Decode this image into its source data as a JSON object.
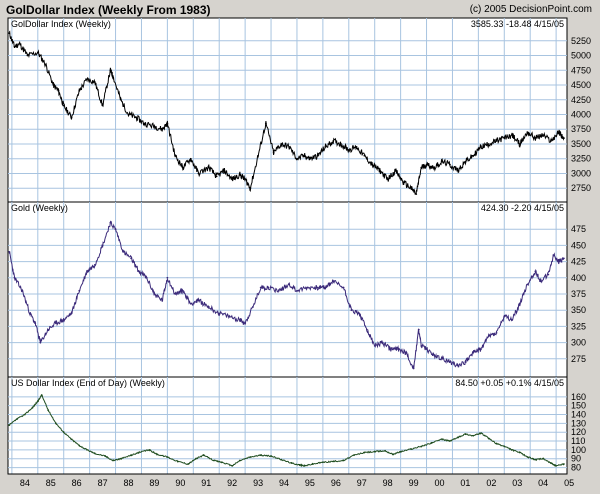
{
  "header": {
    "title": "GolDollar Index (Weekly From 1983)",
    "copyright": "(c) 2005 DecisionPoint.com"
  },
  "colors": {
    "background": "#d6d3ce",
    "plot_bg": "#ffffff",
    "grid": "#a8c4e0",
    "goldollar_line": "#000000",
    "gold_line": "#3b2a7a",
    "usd_line": "#1f4d1f"
  },
  "chart_data": [
    {
      "type": "line",
      "title": "GolDollar Index (Weekly)",
      "stats": {
        "last": "3585.33",
        "change": "-18.48",
        "date": "4/15/05"
      },
      "ylim": [
        2550,
        5450
      ],
      "yticks": [
        2750,
        3000,
        3250,
        3500,
        3750,
        4000,
        4250,
        4500,
        4750,
        5000,
        5250
      ],
      "xlim": [
        1983.85,
        2005.42
      ],
      "x": [
        1983.9,
        1984.1,
        1984.3,
        1984.6,
        1985.0,
        1985.3,
        1985.6,
        1985.8,
        1986.0,
        1986.3,
        1986.6,
        1986.9,
        1987.2,
        1987.5,
        1987.8,
        1987.9,
        1988.2,
        1988.5,
        1988.8,
        1989.1,
        1989.5,
        1989.8,
        1990.0,
        1990.3,
        1990.6,
        1990.9,
        1991.2,
        1991.6,
        1991.9,
        1992.2,
        1992.5,
        1992.8,
        1993.0,
        1993.2,
        1993.5,
        1993.8,
        1994.1,
        1994.4,
        1994.7,
        1995.0,
        1995.3,
        1995.5,
        1995.8,
        1996.1,
        1996.4,
        1996.7,
        1997.0,
        1997.3,
        1997.6,
        1997.9,
        1998.2,
        1998.5,
        1998.8,
        1999.1,
        1999.4,
        1999.6,
        1999.8,
        2000.0,
        2000.3,
        2000.6,
        2000.9,
        2001.2,
        2001.5,
        2001.8,
        2002.1,
        2002.4,
        2002.7,
        2003.0,
        2003.3,
        2003.6,
        2003.9,
        2004.2,
        2004.5,
        2004.8,
        2005.1,
        2005.3
      ],
      "values": [
        5380,
        5150,
        5200,
        5000,
        5050,
        4850,
        4500,
        4400,
        4150,
        3950,
        4400,
        4600,
        4550,
        4150,
        4750,
        4650,
        4250,
        4000,
        3950,
        3850,
        3800,
        3750,
        3850,
        3300,
        3100,
        3250,
        3000,
        3100,
        2950,
        3050,
        2900,
        2980,
        2900,
        2750,
        3300,
        3850,
        3350,
        3500,
        3450,
        3250,
        3300,
        3250,
        3300,
        3450,
        3550,
        3500,
        3400,
        3450,
        3300,
        3150,
        3050,
        2900,
        3050,
        2850,
        2750,
        2650,
        3100,
        3150,
        3100,
        3200,
        3150,
        3050,
        3200,
        3300,
        3450,
        3500,
        3550,
        3600,
        3650,
        3500,
        3700,
        3600,
        3650,
        3550,
        3700,
        3600
      ]
    },
    {
      "type": "line",
      "title": "Gold (Weekly)",
      "stats": {
        "last": "424.30",
        "change": "-2.20",
        "date": "4/15/05"
      },
      "ylim": [
        250,
        500
      ],
      "yticks": [
        275,
        300,
        325,
        350,
        375,
        400,
        425,
        450,
        475
      ],
      "xlim": [
        1983.85,
        2005.42
      ],
      "x": [
        1983.9,
        1984.1,
        1984.4,
        1984.7,
        1984.9,
        1985.1,
        1985.4,
        1985.7,
        1986.0,
        1986.3,
        1986.6,
        1986.9,
        1987.2,
        1987.5,
        1987.8,
        1988.0,
        1988.3,
        1988.6,
        1988.9,
        1989.2,
        1989.5,
        1989.8,
        1990.0,
        1990.3,
        1990.6,
        1990.9,
        1991.2,
        1991.6,
        1992.0,
        1992.4,
        1992.8,
        1993.0,
        1993.3,
        1993.6,
        1993.9,
        1994.3,
        1994.7,
        1995.0,
        1995.4,
        1995.8,
        1996.1,
        1996.4,
        1996.8,
        1997.1,
        1997.4,
        1997.7,
        1998.0,
        1998.3,
        1998.6,
        1998.9,
        1999.2,
        1999.5,
        1999.7,
        1999.8,
        2000.0,
        2000.3,
        2000.6,
        2000.9,
        2001.2,
        2001.5,
        2001.8,
        2002.1,
        2002.4,
        2002.7,
        2003.0,
        2003.3,
        2003.6,
        2003.9,
        2004.2,
        2004.4,
        2004.7,
        2004.9,
        2005.1,
        2005.3
      ],
      "values": [
        440,
        400,
        380,
        345,
        330,
        300,
        320,
        330,
        335,
        345,
        380,
        410,
        420,
        450,
        485,
        475,
        440,
        430,
        410,
        400,
        375,
        365,
        400,
        375,
        380,
        360,
        365,
        355,
        345,
        340,
        335,
        330,
        355,
        385,
        385,
        380,
        390,
        380,
        385,
        385,
        385,
        395,
        385,
        350,
        345,
        320,
        295,
        300,
        290,
        290,
        285,
        260,
        320,
        295,
        290,
        280,
        275,
        270,
        265,
        270,
        285,
        290,
        310,
        315,
        340,
        335,
        360,
        390,
        410,
        395,
        405,
        435,
        425,
        430
      ]
    },
    {
      "type": "line",
      "title": "US Dollar Index (End of Day) (Weekly)",
      "stats": {
        "last": "84.50",
        "change": "+0.05",
        "pct": "+0.1%",
        "date": "4/15/05"
      },
      "ylim": [
        75,
        170
      ],
      "yticks": [
        80,
        90,
        100,
        110,
        120,
        130,
        140,
        150,
        160
      ],
      "xlim": [
        1983.85,
        2005.42
      ],
      "x": [
        1983.9,
        1984.2,
        1984.5,
        1984.8,
        1985.0,
        1985.15,
        1985.4,
        1985.7,
        1986.0,
        1986.3,
        1986.6,
        1986.9,
        1987.2,
        1987.6,
        1987.9,
        1988.2,
        1988.6,
        1988.9,
        1989.3,
        1989.6,
        1990.0,
        1990.4,
        1990.8,
        1991.1,
        1991.4,
        1991.8,
        1992.1,
        1992.5,
        1992.8,
        1993.2,
        1993.6,
        1994.0,
        1994.4,
        1994.8,
        1995.1,
        1995.3,
        1995.6,
        1996.0,
        1996.4,
        1996.8,
        1997.2,
        1997.6,
        1998.0,
        1998.4,
        1998.7,
        1999.0,
        1999.4,
        1999.8,
        2000.2,
        2000.6,
        2000.9,
        2001.2,
        2001.5,
        2001.8,
        2002.1,
        2002.4,
        2002.7,
        2003.0,
        2003.3,
        2003.6,
        2003.9,
        2004.2,
        2004.5,
        2004.8,
        2005.0,
        2005.3
      ],
      "values": [
        128,
        135,
        140,
        148,
        155,
        162,
        145,
        130,
        120,
        112,
        105,
        100,
        96,
        93,
        88,
        90,
        94,
        97,
        100,
        95,
        92,
        87,
        84,
        90,
        94,
        88,
        86,
        82,
        88,
        92,
        94,
        93,
        89,
        85,
        83,
        82,
        84,
        86,
        87,
        88,
        94,
        97,
        98,
        99,
        95,
        98,
        101,
        104,
        108,
        112,
        110,
        114,
        118,
        116,
        119,
        113,
        107,
        104,
        100,
        97,
        92,
        89,
        90,
        85,
        82,
        84
      ]
    }
  ],
  "x_axis": {
    "tick_years": [
      1984,
      1985,
      1986,
      1987,
      1988,
      1989,
      1990,
      1991,
      1992,
      1993,
      1994,
      1995,
      1996,
      1997,
      1998,
      1999,
      2000,
      2001,
      2002,
      2003,
      2004,
      2005
    ],
    "tick_labels": [
      "84",
      "85",
      "86",
      "87",
      "88",
      "89",
      "90",
      "91",
      "92",
      "93",
      "94",
      "95",
      "96",
      "97",
      "98",
      "99",
      "00",
      "01",
      "02",
      "03",
      "04",
      "05"
    ]
  }
}
